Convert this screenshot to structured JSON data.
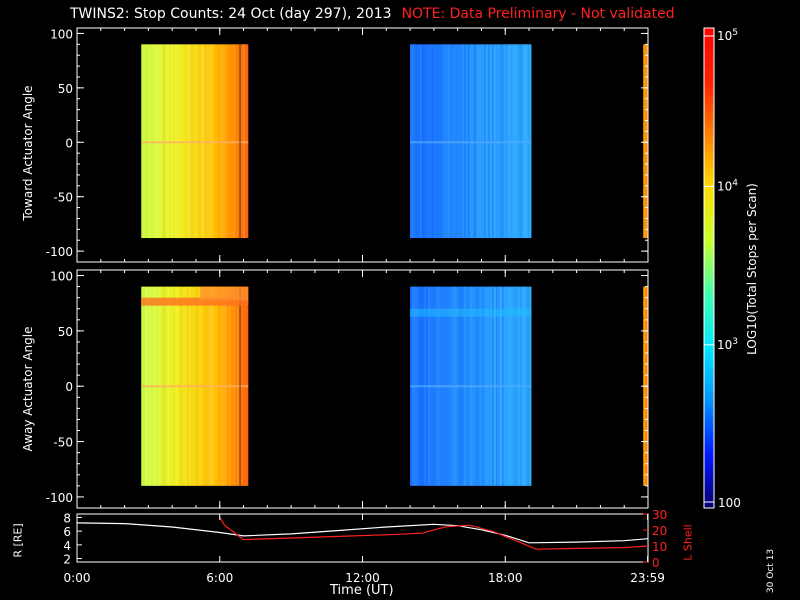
{
  "title": "TWINS2: Stop Counts: 24 Oct (day 297), 2013",
  "note": "NOTE: Data Preliminary - Not validated",
  "date_stamp": "30 Oct 13",
  "colorbar": {
    "label": "LOG10(Total Stops per Scan)",
    "tick_labels": [
      "10^5",
      "10^4",
      "10^3",
      "100"
    ],
    "colors": [
      "#08006a",
      "#0018ff",
      "#0090ff",
      "#00e8ff",
      "#40ffb0",
      "#c8ff30",
      "#ffe000",
      "#ff8000",
      "#ff2000",
      "#ff0000"
    ]
  },
  "chart_data": [
    {
      "type": "heatmap",
      "name": "toward",
      "ylabel": "Toward Actuator Angle",
      "ylim": [
        -110,
        105
      ],
      "yticks": [
        100,
        50,
        0,
        -50,
        -100
      ],
      "xlim": [
        0,
        24
      ],
      "blocks": [
        {
          "t_start": 2.7,
          "t_end": 7.2,
          "level": "yellow-orange (~10^4.3)",
          "angle_range": [
            -88,
            90
          ]
        },
        {
          "t_start": 14.0,
          "t_end": 19.1,
          "level": "blue-cyan (~10^2.7)",
          "angle_range": [
            -88,
            90
          ]
        },
        {
          "t_start": 23.8,
          "t_end": 24.0,
          "level": "orange (~10^4.7)",
          "angle_range": [
            -88,
            90
          ]
        }
      ]
    },
    {
      "type": "heatmap",
      "name": "away",
      "ylabel": "Away Actuator Angle",
      "ylim": [
        -110,
        105
      ],
      "yticks": [
        100,
        50,
        0,
        -50,
        -100
      ],
      "xlim": [
        0,
        24
      ],
      "blocks": [
        {
          "t_start": 2.7,
          "t_end": 7.2,
          "level": "yellow-orange (~10^4.3)",
          "angle_range": [
            -90,
            90
          ]
        },
        {
          "t_start": 14.0,
          "t_end": 19.1,
          "level": "blue-cyan (~10^2.7)",
          "angle_range": [
            -90,
            90
          ]
        },
        {
          "t_start": 23.8,
          "t_end": 24.0,
          "level": "orange (~10^4.7)",
          "angle_range": [
            -90,
            90
          ]
        }
      ]
    },
    {
      "type": "line",
      "name": "orbit",
      "ylabel": "R [RE]",
      "y2label": "L Shell",
      "ylim": [
        1.5,
        8.5
      ],
      "y2lim": [
        0,
        30
      ],
      "xlim": [
        0,
        24
      ],
      "xticks": [
        "0:00",
        "6:00",
        "12:00",
        "18:00",
        "23:59"
      ],
      "xlabel": "Time (UT)",
      "series": [
        {
          "name": "R [RE]",
          "axis": "left",
          "color": "#ffffff",
          "x": [
            0,
            2,
            4,
            6,
            7,
            9,
            11,
            13,
            15,
            16,
            17,
            18,
            19,
            21,
            23,
            24
          ],
          "y": [
            7.2,
            7.1,
            6.6,
            5.8,
            5.3,
            5.6,
            6.1,
            6.6,
            7.0,
            6.8,
            6.2,
            5.4,
            4.3,
            4.4,
            4.6,
            4.9
          ]
        },
        {
          "name": "L Shell",
          "axis": "right",
          "color": "#ff2020",
          "x": [
            6,
            6.2,
            7,
            9,
            11,
            13,
            14.5,
            15.5,
            16.5,
            17.5,
            18.5,
            19.3,
            21,
            23,
            24
          ],
          "y": [
            28,
            23,
            14,
            15,
            16,
            17,
            18,
            22,
            23,
            19,
            13,
            8,
            8.5,
            9,
            10
          ]
        }
      ]
    }
  ]
}
